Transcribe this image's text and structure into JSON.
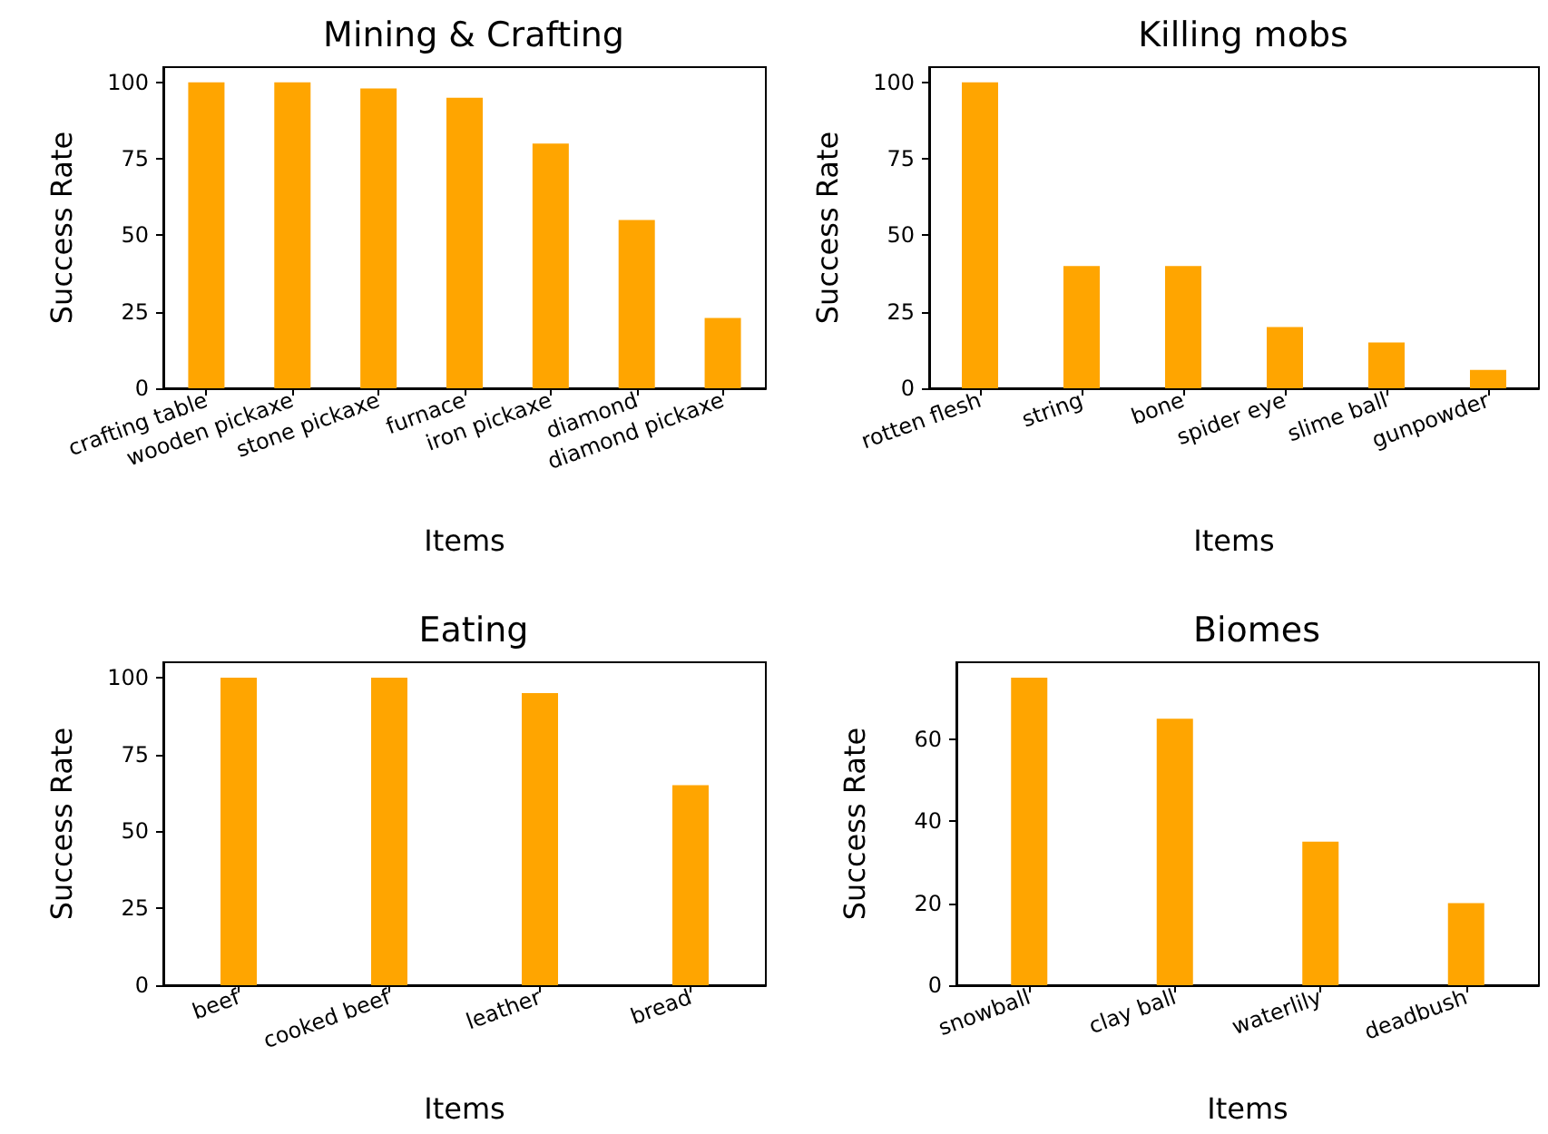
{
  "chart_data": [
    {
      "type": "bar",
      "title": "Mining & Crafting",
      "xlabel": "Items",
      "ylabel": "Success Rate",
      "categories": [
        "crafting table",
        "wooden pickaxe",
        "stone pickaxe",
        "furnace",
        "iron pickaxe",
        "diamond",
        "diamond pickaxe"
      ],
      "values": [
        100,
        100,
        98,
        95,
        80,
        55,
        23
      ],
      "color": "#ffa500",
      "ylim": [
        0,
        105
      ],
      "yticks": [
        0,
        25,
        50,
        75,
        100
      ],
      "grid": false
    },
    {
      "type": "bar",
      "title": "Killing mobs",
      "xlabel": "Items",
      "ylabel": "Success Rate",
      "categories": [
        "rotten flesh",
        "string",
        "bone",
        "spider eye",
        "slime ball",
        "gunpowder"
      ],
      "values": [
        100,
        40,
        40,
        20,
        15,
        6
      ],
      "color": "#ffa500",
      "ylim": [
        0,
        105
      ],
      "yticks": [
        0,
        25,
        50,
        75,
        100
      ],
      "grid": false
    },
    {
      "type": "bar",
      "title": "Eating",
      "xlabel": "Items",
      "ylabel": "Success Rate",
      "categories": [
        "beef",
        "cooked beef",
        "leather",
        "bread"
      ],
      "values": [
        100,
        100,
        95,
        65
      ],
      "color": "#ffa500",
      "ylim": [
        0,
        105
      ],
      "yticks": [
        0,
        25,
        50,
        75,
        100
      ],
      "grid": false
    },
    {
      "type": "bar",
      "title": "Biomes",
      "xlabel": "Items",
      "ylabel": "Success Rate",
      "categories": [
        "snowball",
        "clay ball",
        "waterlily",
        "deadbush"
      ],
      "values": [
        75,
        65,
        35,
        20
      ],
      "color": "#ffa500",
      "ylim": [
        0,
        78.75
      ],
      "yticks": [
        0,
        20,
        40,
        60
      ],
      "grid": false
    }
  ]
}
